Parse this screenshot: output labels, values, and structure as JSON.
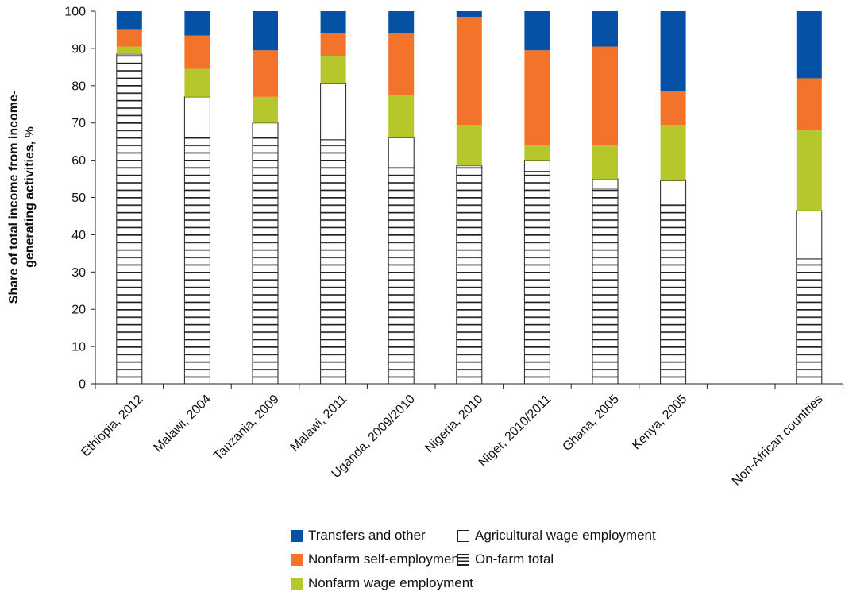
{
  "chart_data": {
    "type": "bar",
    "stacked": true,
    "ylabel_lines": [
      "Share of total income from income-",
      "generating activities, %"
    ],
    "ylim": [
      0,
      100
    ],
    "yticks": [
      0,
      10,
      20,
      30,
      40,
      50,
      60,
      70,
      80,
      90,
      100
    ],
    "categories": [
      "Ethiopia, 2012",
      "Malawi, 2004",
      "Tanzania, 2009",
      "Malawi, 2011",
      "Uganda, 2009/2010",
      "Nigeria, 2010",
      "Niger, 2010/2011",
      "Ghana, 2005",
      "Kenya, 2005",
      "Non-African countries"
    ],
    "gap_before_last": true,
    "series": [
      {
        "name": "On-farm total",
        "key": "onfarm",
        "color": "#222222",
        "values": [
          88.5,
          66,
          66,
          65.5,
          58,
          58,
          57,
          52.5,
          48,
          33.5
        ]
      },
      {
        "name": "Agricultural wage employment",
        "key": "agwage",
        "color": "#ffffff",
        "values": [
          0,
          11,
          4,
          15,
          8,
          0.5,
          3,
          2.5,
          6.5,
          13
        ]
      },
      {
        "name": "Nonfarm wage employment",
        "key": "nfwage",
        "color": "#b5c72a",
        "values": [
          2,
          7.5,
          7,
          7.5,
          11.5,
          11,
          4,
          9,
          15,
          21.5
        ]
      },
      {
        "name": "Nonfarm self-employment",
        "key": "nfself",
        "color": "#f27329",
        "values": [
          4.5,
          9,
          12.5,
          6,
          16.5,
          29,
          25.5,
          26.5,
          9,
          14
        ]
      },
      {
        "name": "Transfers and other",
        "key": "transfers",
        "color": "#0451a5",
        "values": [
          5,
          6.5,
          10.5,
          6,
          6,
          1.5,
          10.5,
          9.5,
          21.5,
          18
        ]
      }
    ],
    "legend_position": "bottom"
  },
  "legend": {
    "transfers": "Transfers and other",
    "nfself": "Nonfarm self-employment",
    "nfwage": "Nonfarm wage employment",
    "agwage": "Agricultural wage employment",
    "onfarm": "On-farm total"
  }
}
